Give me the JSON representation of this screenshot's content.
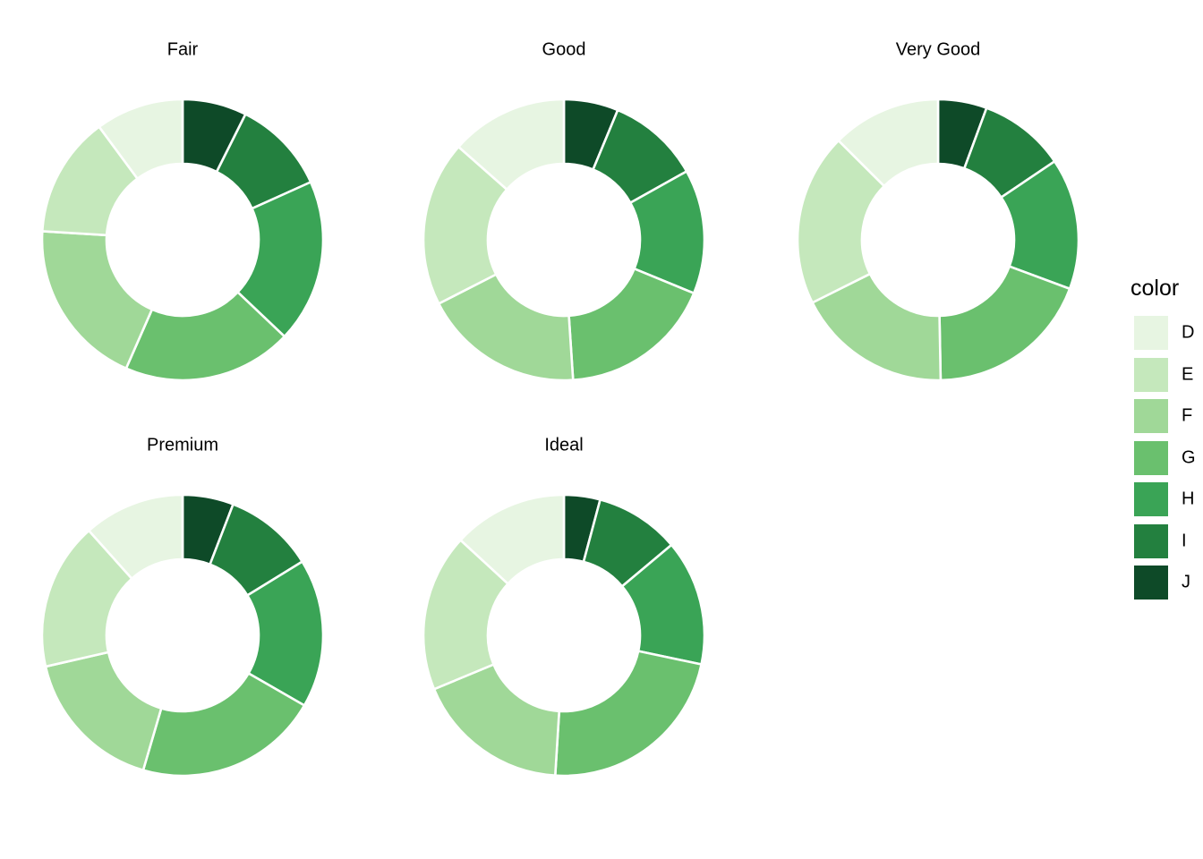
{
  "figure": {
    "background_color": "#ffffff",
    "text_color": "#000000"
  },
  "chart_data": {
    "type": "pie",
    "variant": "donut",
    "facet_variable": "cut",
    "facet_titles": [
      "Fair",
      "Good",
      "Very Good",
      "Premium",
      "Ideal"
    ],
    "legend_title": "color",
    "legend_position": "right",
    "grid": false,
    "categories": [
      "D",
      "E",
      "F",
      "G",
      "H",
      "I",
      "J"
    ],
    "colors": [
      "#E7F5E2",
      "#C5E8BC",
      "#A0D898",
      "#6AC06E",
      "#3AA456",
      "#23803F",
      "#0E4A28"
    ],
    "slice_border_color": "#ffffff",
    "draw_order": "clockwise from 12 o'clock starting with last category (J), ending with first (D)",
    "facets": [
      {
        "title": "Fair",
        "shares_pct": [
          10.12,
          13.91,
          19.38,
          19.5,
          18.82,
          10.87,
          7.39
        ]
      },
      {
        "title": "Good",
        "shares_pct": [
          13.49,
          19.02,
          18.53,
          17.75,
          14.31,
          10.64,
          6.26
        ]
      },
      {
        "title": "Very Good",
        "shares_pct": [
          12.52,
          19.86,
          17.91,
          19.03,
          15.1,
          9.96,
          5.61
        ]
      },
      {
        "title": "Premium",
        "shares_pct": [
          11.62,
          16.95,
          16.9,
          21.2,
          17.11,
          10.35,
          5.86
        ]
      },
      {
        "title": "Ideal",
        "shares_pct": [
          13.15,
          18.11,
          17.75,
          22.66,
          14.45,
          9.71,
          4.16
        ]
      }
    ]
  }
}
